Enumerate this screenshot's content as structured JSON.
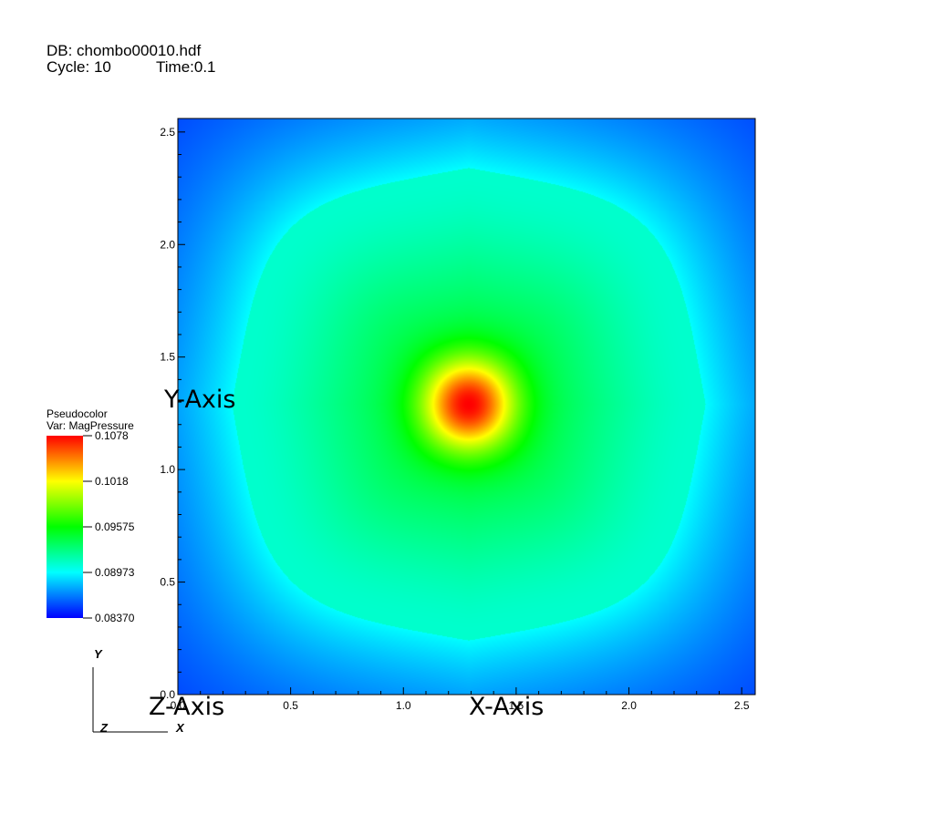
{
  "header": {
    "db_label": "DB: chombo00010.hdf",
    "cycle_label": "Cycle: 10",
    "time_label": "Time:0.1"
  },
  "legend": {
    "title": "Pseudocolor",
    "variable": "Var: MagPressure",
    "ticks": [
      "0.1078",
      "0.1018",
      "0.09575",
      "0.08973",
      "0.08370"
    ],
    "min": 0.0837,
    "max": 0.1078,
    "colormap": [
      "#0000ff",
      "#00ffff",
      "#00ff00",
      "#ffff00",
      "#ff0000"
    ]
  },
  "triad": {
    "x_label": "X",
    "y_label": "Y",
    "z_label": "Z"
  },
  "chart_data": {
    "type": "heatmap",
    "title": "",
    "xlabel": "X-Axis",
    "ylabel": "Y-Axis",
    "zlabel": "Z-Axis",
    "xlim": [
      0,
      2.56
    ],
    "ylim": [
      0,
      2.56
    ],
    "x_ticks": [
      "0.0",
      "0.5",
      "1.0",
      "1.5",
      "2.0",
      "2.5"
    ],
    "y_ticks": [
      "0.0",
      "0.5",
      "1.0",
      "1.5",
      "2.0",
      "2.5"
    ],
    "x_tick_values": [
      0,
      0.5,
      1.0,
      1.5,
      2.0,
      2.5
    ],
    "y_tick_values": [
      0,
      0.5,
      1.0,
      1.5,
      2.0,
      2.5
    ],
    "peak_center": [
      1.29,
      1.29
    ],
    "peak_value": 0.1078,
    "min_value": 0.0837,
    "field_description_values": {
      "central_blob_radius": 0.25,
      "diamond_front_radius_l1": 1.05,
      "front_value": 0.0897
    }
  }
}
